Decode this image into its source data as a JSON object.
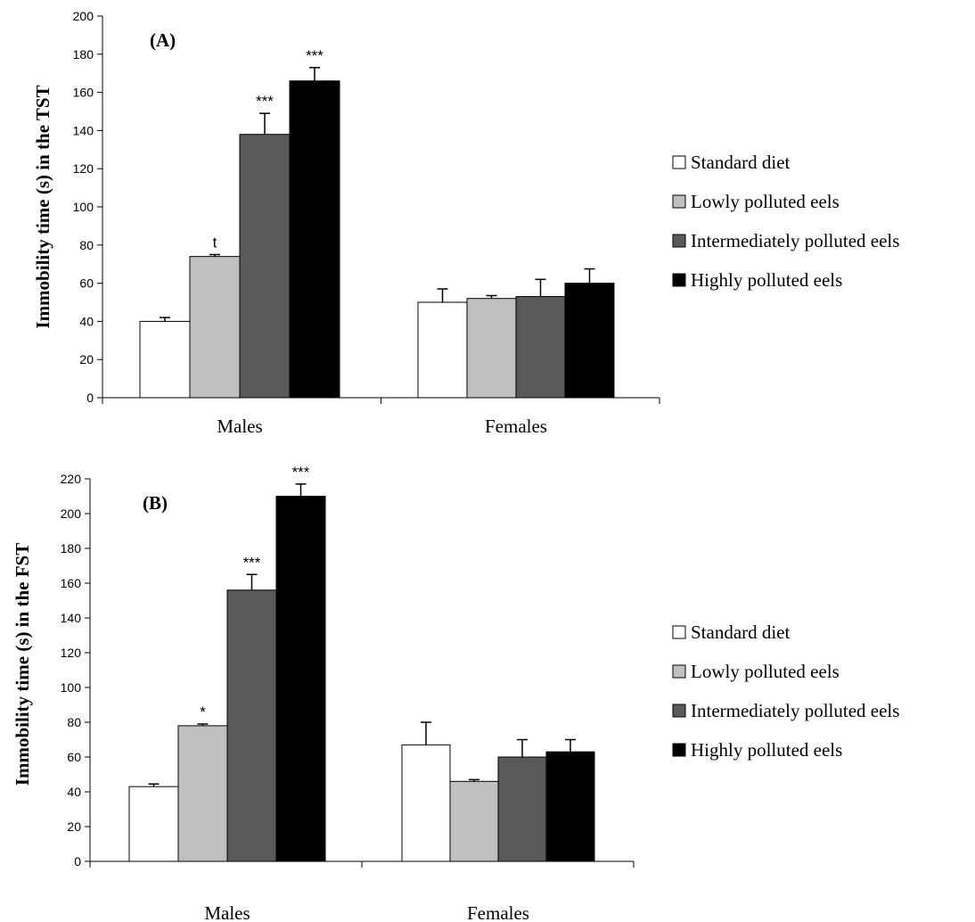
{
  "chart_data": [
    {
      "type": "bar",
      "panel_label": "(A)",
      "ylabel": "Immobility  time  (s) in the TST",
      "ylim": [
        0,
        200
      ],
      "yticks": [
        0,
        20,
        40,
        60,
        80,
        100,
        120,
        140,
        160,
        180,
        200
      ],
      "categories": [
        "Males",
        "Females"
      ],
      "series": [
        {
          "name": "Standard diet",
          "color": "#ffffff",
          "values": [
            40,
            50
          ],
          "errors": [
            2,
            7
          ],
          "sig": [
            "",
            ""
          ]
        },
        {
          "name": "Lowly polluted eels",
          "color": "#c0c0c0",
          "values": [
            74,
            52
          ],
          "errors": [
            1,
            1.5
          ],
          "sig": [
            "t",
            ""
          ]
        },
        {
          "name": "Intermediately polluted eels",
          "color": "#595959",
          "values": [
            138,
            53
          ],
          "errors": [
            11,
            9
          ],
          "sig": [
            "***",
            ""
          ]
        },
        {
          "name": "Highly polluted eels",
          "color": "#000000",
          "values": [
            166,
            60
          ],
          "errors": [
            7,
            7.5
          ],
          "sig": [
            "***",
            ""
          ]
        }
      ],
      "legend_position": "right"
    },
    {
      "type": "bar",
      "panel_label": "(B)",
      "ylabel": "Immobility  time  (s) in the FST",
      "ylim": [
        0,
        220
      ],
      "yticks": [
        0,
        20,
        40,
        60,
        80,
        100,
        120,
        140,
        160,
        180,
        200,
        220
      ],
      "categories": [
        "Males",
        "Females"
      ],
      "series": [
        {
          "name": "Standard diet",
          "color": "#ffffff",
          "values": [
            43,
            67
          ],
          "errors": [
            1.5,
            13
          ],
          "sig": [
            "",
            ""
          ]
        },
        {
          "name": "Lowly polluted eels",
          "color": "#c0c0c0",
          "values": [
            78,
            46
          ],
          "errors": [
            1,
            1
          ],
          "sig": [
            "*",
            ""
          ]
        },
        {
          "name": "Intermediately polluted eels",
          "color": "#595959",
          "values": [
            156,
            60
          ],
          "errors": [
            9,
            10
          ],
          "sig": [
            "***",
            ""
          ]
        },
        {
          "name": "Highly polluted eels",
          "color": "#000000",
          "values": [
            210,
            63
          ],
          "errors": [
            7,
            7
          ],
          "sig": [
            "***",
            ""
          ]
        }
      ],
      "legend_position": "right"
    }
  ]
}
